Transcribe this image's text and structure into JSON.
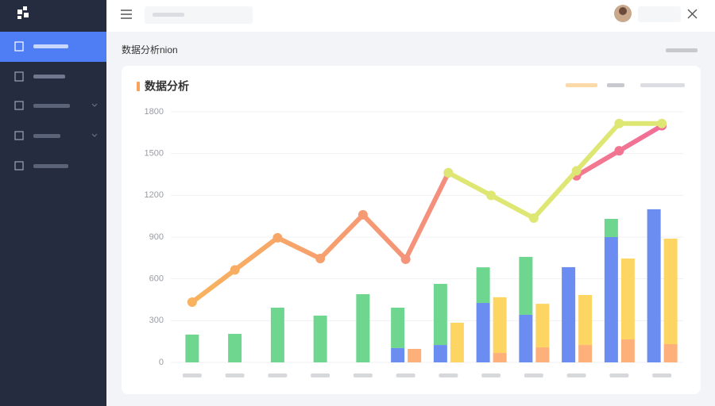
{
  "page": {
    "heading": "数据分析nion"
  },
  "chart_data": {
    "type": "combo",
    "title": "数据分析",
    "categories": [
      null,
      null,
      null,
      null,
      null,
      null,
      null,
      null,
      null,
      null,
      null,
      null
    ],
    "ylim": [
      0,
      1800
    ],
    "yticks": [
      0,
      300,
      600,
      900,
      1200,
      1500,
      1800
    ],
    "grid": true,
    "series": [
      {
        "type": "bar",
        "stack": "left",
        "color": "#6b8cf0",
        "values": [
          0,
          0,
          0,
          0,
          0,
          103,
          125,
          427,
          342,
          684,
          900,
          1100
        ]
      },
      {
        "type": "bar",
        "stack": "left",
        "color": "#6fd68f",
        "values": [
          200,
          205,
          393,
          336,
          490,
          290,
          439,
          256,
          416,
          0,
          131,
          0
        ]
      },
      {
        "type": "bar",
        "stack": "right",
        "color": "#fdb07a",
        "values": [
          0,
          0,
          0,
          0,
          0,
          97,
          0,
          68,
          108,
          125,
          165,
          131
        ]
      },
      {
        "type": "bar",
        "stack": "right",
        "color": "#fdd562",
        "values": [
          0,
          0,
          0,
          0,
          0,
          0,
          285,
          400,
          313,
          359,
          581,
          758
        ]
      },
      {
        "type": "line",
        "colors": [
          "#f9b65c",
          "#f06b9a"
        ],
        "values": [
          433,
          664,
          895,
          746,
          1060,
          741,
          1362,
          null,
          null,
          1340,
          1520,
          1700
        ]
      },
      {
        "type": "line",
        "colors": [
          "#dfe774",
          "#dfe774"
        ],
        "values": [
          null,
          null,
          null,
          null,
          null,
          null,
          1362,
          1200,
          1037,
          1376,
          1716,
          1716
        ]
      }
    ]
  }
}
